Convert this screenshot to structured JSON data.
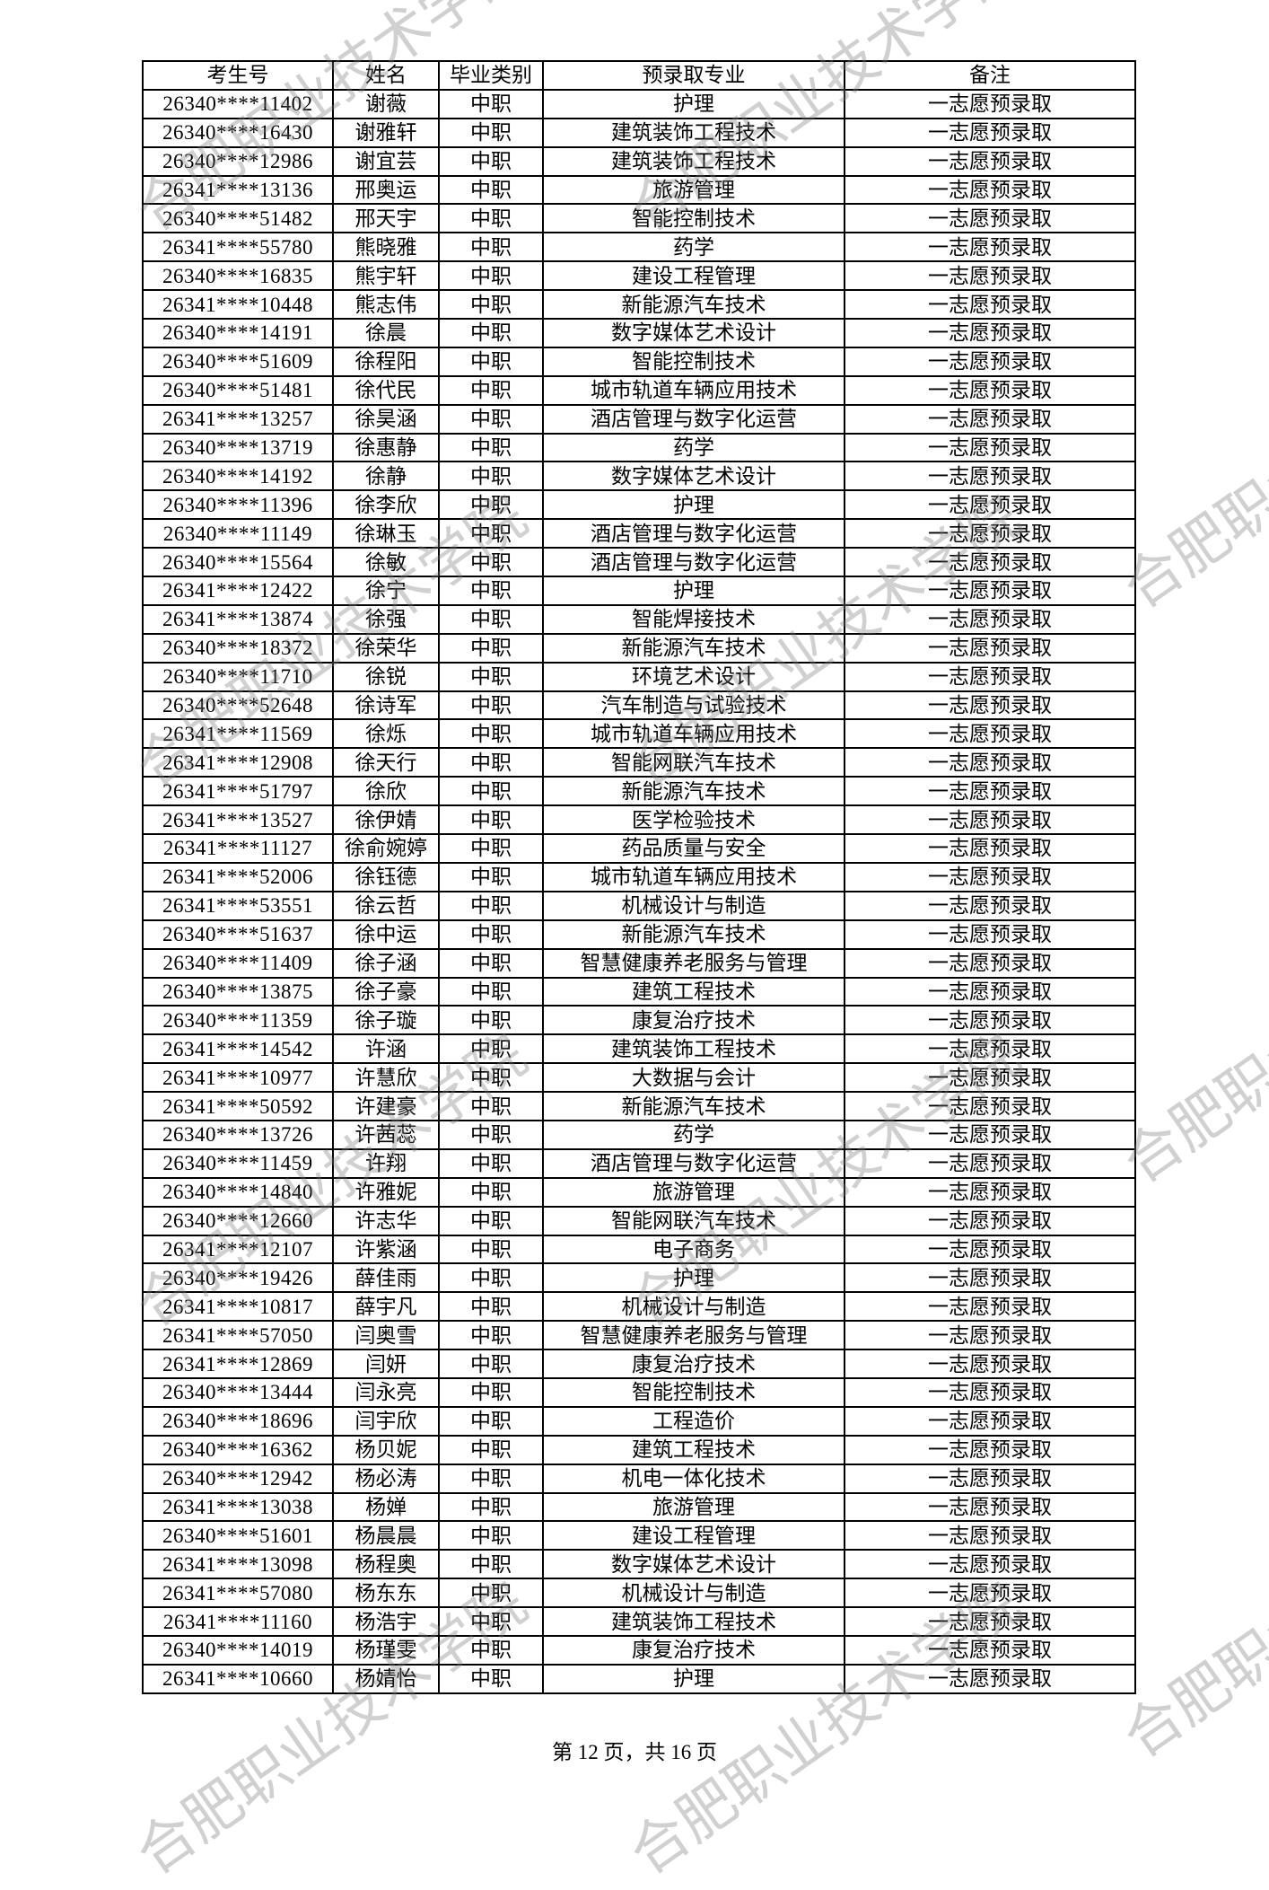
{
  "table": {
    "headers": [
      "考生号",
      "姓名",
      "毕业类别",
      "预录取专业",
      "备注"
    ],
    "rows": [
      [
        "26340****11402",
        "谢薇",
        "中职",
        "护理",
        "一志愿预录取"
      ],
      [
        "26340****16430",
        "谢雅轩",
        "中职",
        "建筑装饰工程技术",
        "一志愿预录取"
      ],
      [
        "26340****12986",
        "谢宜芸",
        "中职",
        "建筑装饰工程技术",
        "一志愿预录取"
      ],
      [
        "26341****13136",
        "邢奥运",
        "中职",
        "旅游管理",
        "一志愿预录取"
      ],
      [
        "26340****51482",
        "邢天宇",
        "中职",
        "智能控制技术",
        "一志愿预录取"
      ],
      [
        "26341****55780",
        "熊晓雅",
        "中职",
        "药学",
        "一志愿预录取"
      ],
      [
        "26340****16835",
        "熊宇轩",
        "中职",
        "建设工程管理",
        "一志愿预录取"
      ],
      [
        "26341****10448",
        "熊志伟",
        "中职",
        "新能源汽车技术",
        "一志愿预录取"
      ],
      [
        "26340****14191",
        "徐晨",
        "中职",
        "数字媒体艺术设计",
        "一志愿预录取"
      ],
      [
        "26340****51609",
        "徐程阳",
        "中职",
        "智能控制技术",
        "一志愿预录取"
      ],
      [
        "26340****51481",
        "徐代民",
        "中职",
        "城市轨道车辆应用技术",
        "一志愿预录取"
      ],
      [
        "26341****13257",
        "徐昊涵",
        "中职",
        "酒店管理与数字化运营",
        "一志愿预录取"
      ],
      [
        "26340****13719",
        "徐惠静",
        "中职",
        "药学",
        "一志愿预录取"
      ],
      [
        "26340****14192",
        "徐静",
        "中职",
        "数字媒体艺术设计",
        "一志愿预录取"
      ],
      [
        "26340****11396",
        "徐李欣",
        "中职",
        "护理",
        "一志愿预录取"
      ],
      [
        "26340****11149",
        "徐琳玉",
        "中职",
        "酒店管理与数字化运营",
        "一志愿预录取"
      ],
      [
        "26340****15564",
        "徐敏",
        "中职",
        "酒店管理与数字化运营",
        "一志愿预录取"
      ],
      [
        "26341****12422",
        "徐宁",
        "中职",
        "护理",
        "一志愿预录取"
      ],
      [
        "26341****13874",
        "徐强",
        "中职",
        "智能焊接技术",
        "一志愿预录取"
      ],
      [
        "26340****18372",
        "徐荣华",
        "中职",
        "新能源汽车技术",
        "一志愿预录取"
      ],
      [
        "26340****11710",
        "徐锐",
        "中职",
        "环境艺术设计",
        "一志愿预录取"
      ],
      [
        "26340****52648",
        "徐诗军",
        "中职",
        "汽车制造与试验技术",
        "一志愿预录取"
      ],
      [
        "26341****11569",
        "徐烁",
        "中职",
        "城市轨道车辆应用技术",
        "一志愿预录取"
      ],
      [
        "26341****12908",
        "徐天行",
        "中职",
        "智能网联汽车技术",
        "一志愿预录取"
      ],
      [
        "26341****51797",
        "徐欣",
        "中职",
        "新能源汽车技术",
        "一志愿预录取"
      ],
      [
        "26341****13527",
        "徐伊婧",
        "中职",
        "医学检验技术",
        "一志愿预录取"
      ],
      [
        "26341****11127",
        "徐俞婉婷",
        "中职",
        "药品质量与安全",
        "一志愿预录取"
      ],
      [
        "26341****52006",
        "徐钰德",
        "中职",
        "城市轨道车辆应用技术",
        "一志愿预录取"
      ],
      [
        "26341****53551",
        "徐云哲",
        "中职",
        "机械设计与制造",
        "一志愿预录取"
      ],
      [
        "26340****51637",
        "徐中运",
        "中职",
        "新能源汽车技术",
        "一志愿预录取"
      ],
      [
        "26340****11409",
        "徐子涵",
        "中职",
        "智慧健康养老服务与管理",
        "一志愿预录取"
      ],
      [
        "26340****13875",
        "徐子豪",
        "中职",
        "建筑工程技术",
        "一志愿预录取"
      ],
      [
        "26340****11359",
        "徐子璇",
        "中职",
        "康复治疗技术",
        "一志愿预录取"
      ],
      [
        "26341****14542",
        "许涵",
        "中职",
        "建筑装饰工程技术",
        "一志愿预录取"
      ],
      [
        "26341****10977",
        "许慧欣",
        "中职",
        "大数据与会计",
        "一志愿预录取"
      ],
      [
        "26341****50592",
        "许建豪",
        "中职",
        "新能源汽车技术",
        "一志愿预录取"
      ],
      [
        "26340****13726",
        "许茜蕊",
        "中职",
        "药学",
        "一志愿预录取"
      ],
      [
        "26340****11459",
        "许翔",
        "中职",
        "酒店管理与数字化运营",
        "一志愿预录取"
      ],
      [
        "26340****14840",
        "许雅妮",
        "中职",
        "旅游管理",
        "一志愿预录取"
      ],
      [
        "26340****12660",
        "许志华",
        "中职",
        "智能网联汽车技术",
        "一志愿预录取"
      ],
      [
        "26341****12107",
        "许紫涵",
        "中职",
        "电子商务",
        "一志愿预录取"
      ],
      [
        "26340****19426",
        "薛佳雨",
        "中职",
        "护理",
        "一志愿预录取"
      ],
      [
        "26341****10817",
        "薛宇凡",
        "中职",
        "机械设计与制造",
        "一志愿预录取"
      ],
      [
        "26341****57050",
        "闫奥雪",
        "中职",
        "智慧健康养老服务与管理",
        "一志愿预录取"
      ],
      [
        "26341****12869",
        "闫妍",
        "中职",
        "康复治疗技术",
        "一志愿预录取"
      ],
      [
        "26340****13444",
        "闫永亮",
        "中职",
        "智能控制技术",
        "一志愿预录取"
      ],
      [
        "26340****18696",
        "闫宇欣",
        "中职",
        "工程造价",
        "一志愿预录取"
      ],
      [
        "26340****16362",
        "杨贝妮",
        "中职",
        "建筑工程技术",
        "一志愿预录取"
      ],
      [
        "26340****12942",
        "杨必涛",
        "中职",
        "机电一体化技术",
        "一志愿预录取"
      ],
      [
        "26341****13038",
        "杨婵",
        "中职",
        "旅游管理",
        "一志愿预录取"
      ],
      [
        "26340****51601",
        "杨晨晨",
        "中职",
        "建设工程管理",
        "一志愿预录取"
      ],
      [
        "26341****13098",
        "杨程奥",
        "中职",
        "数字媒体艺术设计",
        "一志愿预录取"
      ],
      [
        "26341****57080",
        "杨东东",
        "中职",
        "机械设计与制造",
        "一志愿预录取"
      ],
      [
        "26341****11160",
        "杨浩宇",
        "中职",
        "建筑装饰工程技术",
        "一志愿预录取"
      ],
      [
        "26340****14019",
        "杨瑾雯",
        "中职",
        "康复治疗技术",
        "一志愿预录取"
      ],
      [
        "26341****10660",
        "杨婧怡",
        "中职",
        "护理",
        "一志愿预录取"
      ]
    ]
  },
  "footer": {
    "page_text": "第 12 页，共 16 页"
  },
  "watermark": {
    "text": "合肥职业技术学院"
  }
}
